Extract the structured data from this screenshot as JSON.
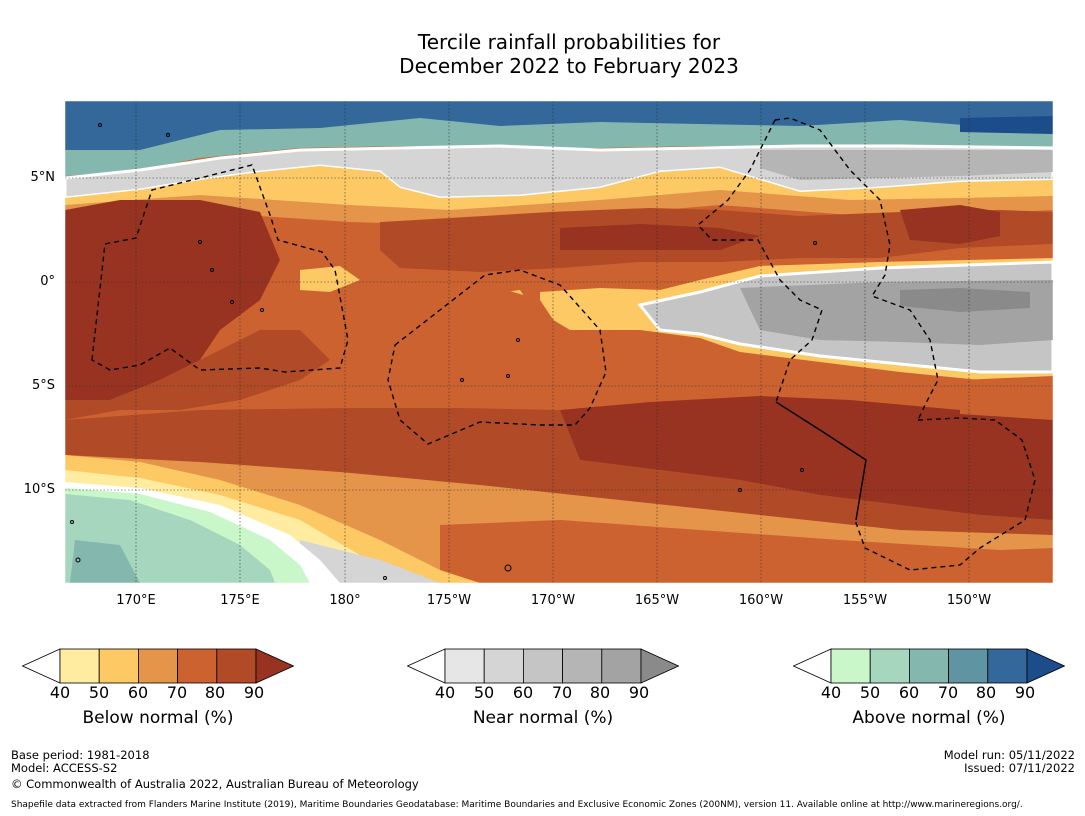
{
  "title": {
    "line1": "Tercile rainfall probabilities for",
    "line2": "December 2022 to February 2023"
  },
  "map": {
    "lat_labels": [
      "5°N",
      "0°",
      "5°S",
      "10°S"
    ],
    "lon_labels": [
      "170°E",
      "175°E",
      "180°",
      "175°W",
      "170°W",
      "165°W",
      "160°W",
      "155°W",
      "150°W"
    ]
  },
  "colorbars": [
    {
      "name": "below",
      "label": "Below normal (%)",
      "ticks": [
        "40",
        "50",
        "60",
        "70",
        "80",
        "90"
      ],
      "colors": [
        "#ffffff",
        "#ffeca0",
        "#fdc965",
        "#e4954a",
        "#cd6231",
        "#b14a26",
        "#973320"
      ]
    },
    {
      "name": "near",
      "label": "Near normal (%)",
      "ticks": [
        "40",
        "50",
        "60",
        "70",
        "80",
        "90"
      ],
      "colors": [
        "#ffffff",
        "#e6e6e6",
        "#d5d5d5",
        "#c5c5c5",
        "#b5b5b5",
        "#a3a3a3",
        "#8a8a8a"
      ]
    },
    {
      "name": "above",
      "label": "Above normal (%)",
      "ticks": [
        "40",
        "50",
        "60",
        "70",
        "80",
        "90"
      ],
      "colors": [
        "#ffffff",
        "#c9f7c9",
        "#a6d7be",
        "#84b8af",
        "#5f94a3",
        "#34679a",
        "#1d4c8a"
      ]
    }
  ],
  "footer": {
    "base_period": "Base period: 1981-2018",
    "model": "Model: ACCESS-S2",
    "copyright": "© Commonwealth of Australia 2022, Australian Bureau of Meteorology",
    "model_run": "Model run: 05/11/2022",
    "issued": "Issued: 07/11/2022",
    "shapefile": "Shapefile data extracted from Flanders Marine Institute (2019), Maritime Boundaries Geodatabase: Maritime Boundaries and Exclusive Economic Zones (200NM), version 11. Available online at http://www.marineregions.org/."
  }
}
